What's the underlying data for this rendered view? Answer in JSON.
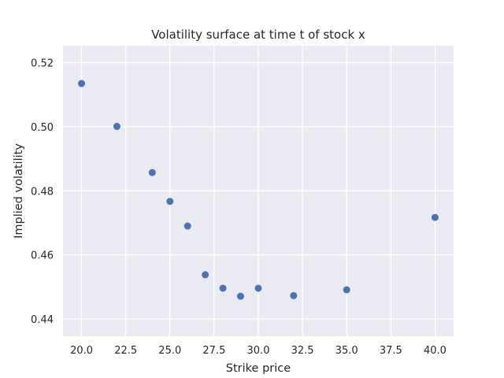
{
  "chart_data": {
    "type": "scatter",
    "title": "Volatility surface at time t of stock x",
    "xlabel": "Strike price",
    "ylabel": "Implied volatility",
    "xlim": [
      18.95,
      41.05
    ],
    "ylim": [
      0.4346,
      0.5253
    ],
    "xticks": [
      "20.0",
      "22.5",
      "25.0",
      "27.5",
      "30.0",
      "32.5",
      "35.0",
      "37.5",
      "40.0"
    ],
    "yticks": [
      "0.44",
      "0.46",
      "0.48",
      "0.50",
      "0.52"
    ],
    "grid": true,
    "point_color": "#4c72b0",
    "background_color": "#eaeaf2",
    "x": [
      20,
      22,
      24,
      25,
      26,
      27,
      28,
      29,
      30,
      32,
      35,
      40
    ],
    "y": [
      0.5135,
      0.5001,
      0.4857,
      0.4767,
      0.469,
      0.4538,
      0.4496,
      0.4471,
      0.4496,
      0.4473,
      0.4491,
      0.4717
    ]
  }
}
